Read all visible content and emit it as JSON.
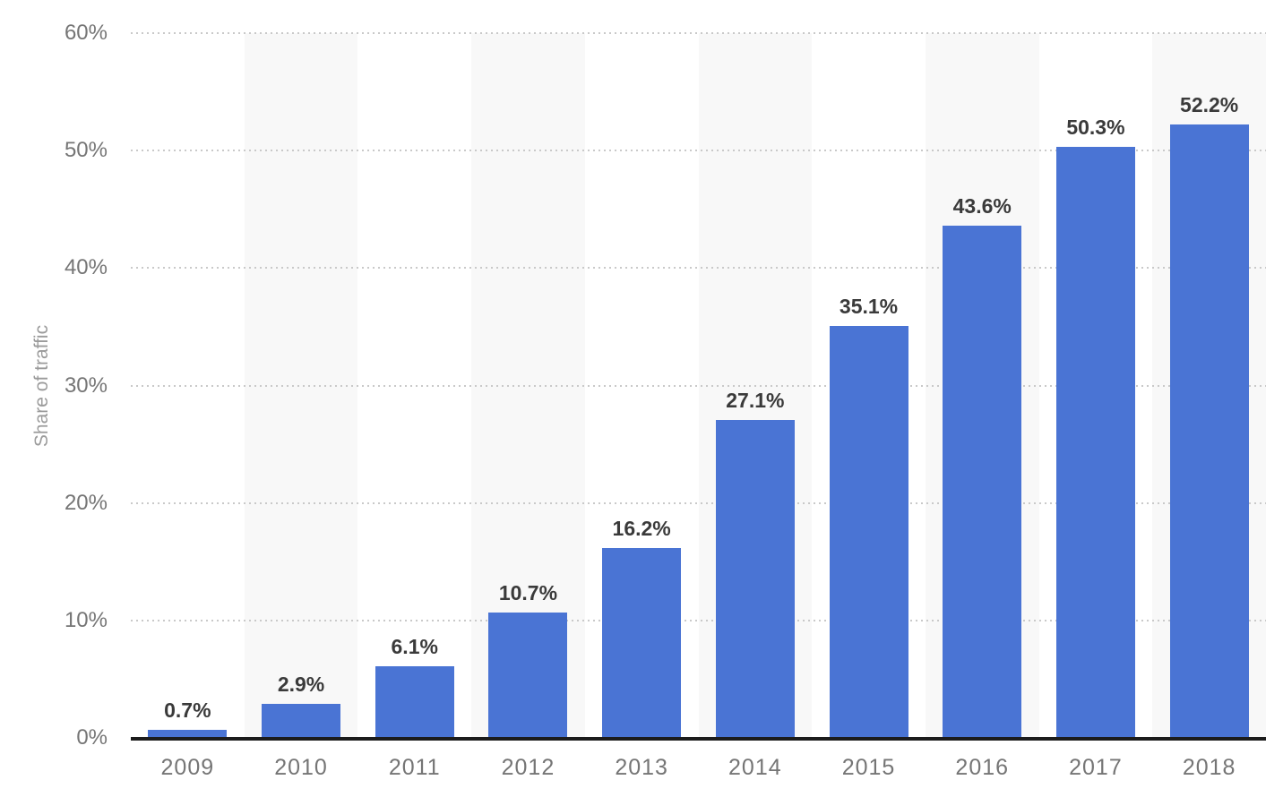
{
  "chart_data": {
    "type": "bar",
    "title": "",
    "xlabel": "",
    "ylabel": "Share of traffic",
    "categories": [
      "2009",
      "2010",
      "2011",
      "2012",
      "2013",
      "2014",
      "2015",
      "2016",
      "2017",
      "2018"
    ],
    "values": [
      0.7,
      2.9,
      6.1,
      10.7,
      16.2,
      27.1,
      35.1,
      43.6,
      50.3,
      52.2
    ],
    "value_labels": [
      "0.7%",
      "2.9%",
      "6.1%",
      "10.7%",
      "16.2%",
      "27.1%",
      "35.1%",
      "43.6%",
      "50.3%",
      "52.2%"
    ],
    "ylim": [
      0,
      60
    ],
    "yticks": [
      0,
      10,
      20,
      30,
      40,
      50,
      60
    ],
    "ytick_labels": [
      "0%",
      "10%",
      "20%",
      "30%",
      "40%",
      "50%",
      "60%"
    ],
    "grid": "horizontal-dotted",
    "legend": null,
    "band_pattern": "alternating-columns-even-categories-shaded",
    "colors": {
      "bar": "#4a74d4",
      "column_band": "#f8f8f8",
      "gridline": "#c9c9c9",
      "axis_line": "#1c1c1c",
      "tick_text": "#757575",
      "value_text": "#3a3a3a",
      "axis_title_text": "#9b9b9b",
      "background": "#ffffff"
    }
  }
}
